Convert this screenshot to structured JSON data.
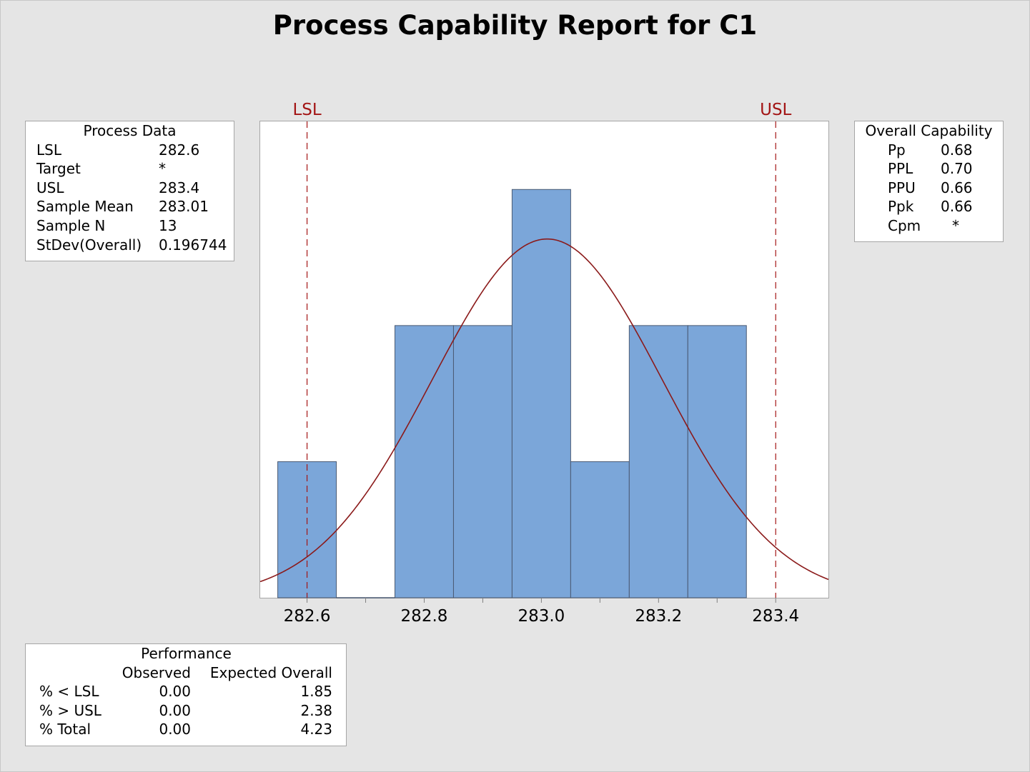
{
  "title": "Process Capability Report for C1",
  "process_data": {
    "header": "Process Data",
    "rows": [
      {
        "label": "LSL",
        "value": "282.6"
      },
      {
        "label": "Target",
        "value": "*"
      },
      {
        "label": "USL",
        "value": "283.4"
      },
      {
        "label": "Sample Mean",
        "value": "283.01"
      },
      {
        "label": "Sample N",
        "value": "13"
      },
      {
        "label": "StDev(Overall)",
        "value": "0.196744"
      }
    ]
  },
  "overall_capability": {
    "header": "Overall Capability",
    "rows": [
      {
        "label": "Pp",
        "value": "0.68"
      },
      {
        "label": "PPL",
        "value": "0.70"
      },
      {
        "label": "PPU",
        "value": "0.66"
      },
      {
        "label": "Ppk",
        "value": "0.66"
      },
      {
        "label": "Cpm",
        "value": "*"
      }
    ]
  },
  "performance": {
    "header": "Performance",
    "col_observed": "Observed",
    "col_expected": "Expected Overall",
    "rows": [
      {
        "label": "% < LSL",
        "observed": "0.00",
        "expected": "1.85"
      },
      {
        "label": "% > USL",
        "observed": "0.00",
        "expected": "2.38"
      },
      {
        "label": "% Total",
        "observed": "0.00",
        "expected": "4.23"
      }
    ]
  },
  "colors": {
    "bar_fill": "#7ba6d9",
    "bar_stroke": "#4a5a73",
    "curve": "#8b1a1a",
    "spec_line": "#a31515",
    "background": "#e5e5e5"
  },
  "chart_data": {
    "type": "bar",
    "title": "Process Capability Report for C1",
    "xlim": [
      282.52,
      283.49
    ],
    "ylim": [
      0,
      3.5
    ],
    "bin_width": 0.1,
    "bins": [
      {
        "center": 282.6,
        "count": 1
      },
      {
        "center": 282.7,
        "count": 0
      },
      {
        "center": 282.8,
        "count": 2
      },
      {
        "center": 282.9,
        "count": 2
      },
      {
        "center": 283.0,
        "count": 3
      },
      {
        "center": 283.1,
        "count": 1
      },
      {
        "center": 283.2,
        "count": 2
      },
      {
        "center": 283.3,
        "count": 2
      }
    ],
    "x_ticks": [
      "282.6",
      "282.8",
      "283.0",
      "283.2",
      "283.4"
    ],
    "x_tick_values": [
      282.6,
      282.8,
      283.0,
      283.2,
      283.4
    ],
    "spec_limits": [
      {
        "label": "LSL",
        "value": 282.6
      },
      {
        "label": "USL",
        "value": 283.4
      }
    ],
    "normal_curve": {
      "mean": 283.01,
      "stdev": 0.196744,
      "n": 13
    },
    "grid": false,
    "legend": "none"
  }
}
